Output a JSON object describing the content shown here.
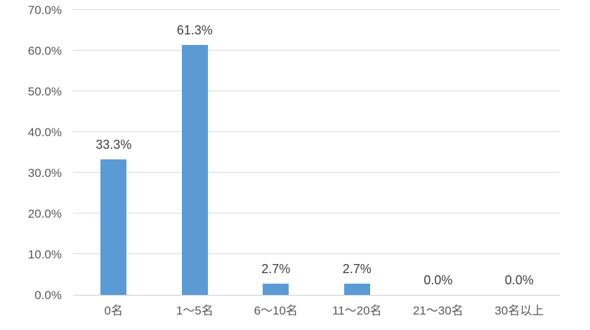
{
  "chart_data": {
    "type": "bar",
    "title": "",
    "xlabel": "",
    "ylabel": "",
    "categories": [
      "0名",
      "1～5名",
      "6～10名",
      "11～20名",
      "21～30名",
      "30名以上"
    ],
    "values": [
      33.3,
      61.3,
      2.7,
      2.7,
      0.0,
      0.0
    ],
    "data_labels": [
      "33.3%",
      "61.3%",
      "2.7%",
      "2.7%",
      "0.0%",
      "0.0%"
    ],
    "ylim": [
      0,
      70
    ],
    "ytick_step": 10,
    "ytick_labels": [
      "0.0%",
      "10.0%",
      "20.0%",
      "30.0%",
      "40.0%",
      "50.0%",
      "60.0%",
      "70.0%"
    ],
    "grid": true,
    "legend_position": "none",
    "bar_color": "#5B9BD5",
    "axis_text_color": "#595959",
    "data_label_color": "#404040",
    "gridline_color": "#D9D9D9",
    "axis_line_color": "#D0D0D0"
  }
}
